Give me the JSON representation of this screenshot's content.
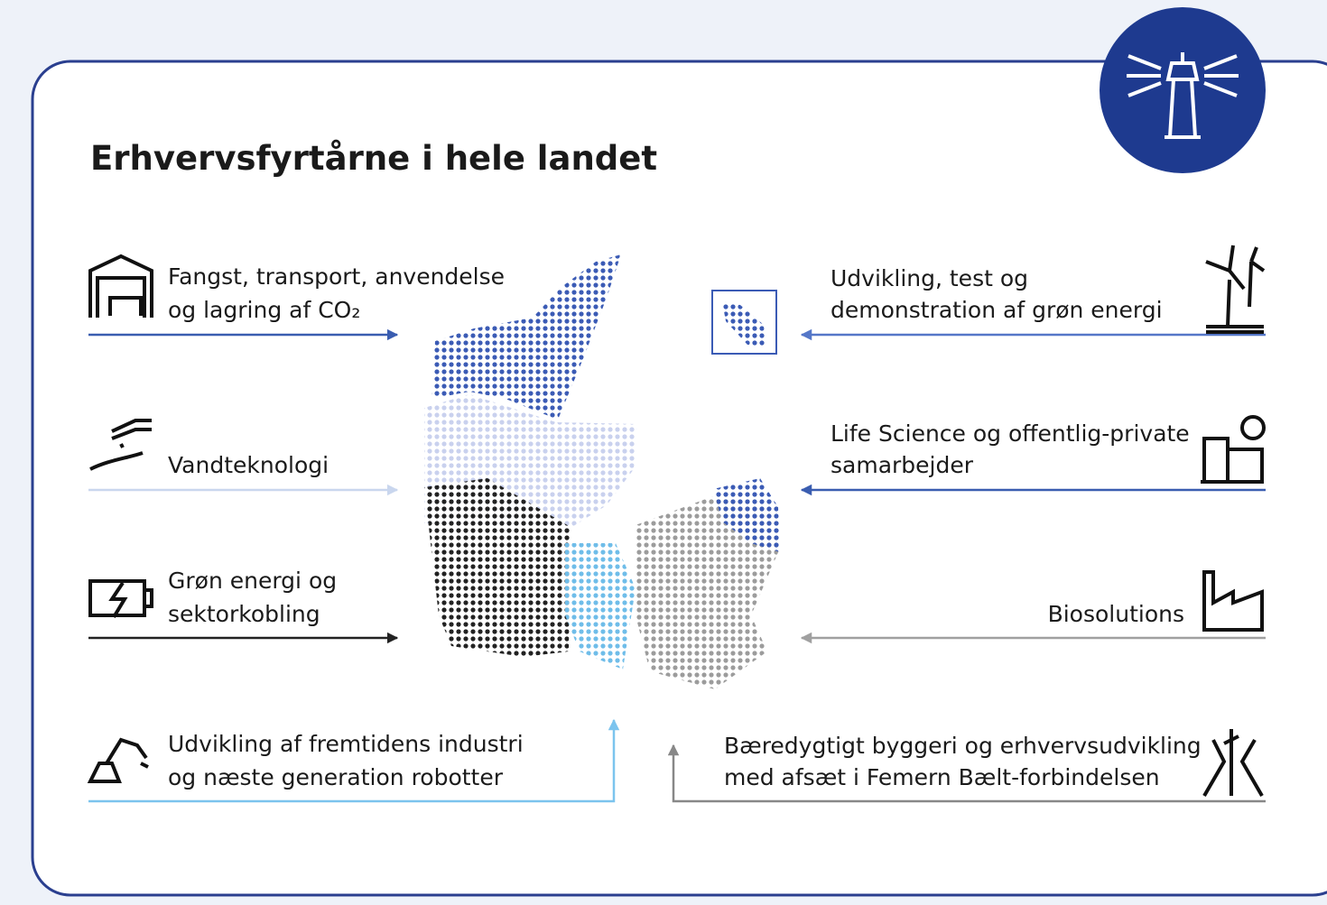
{
  "title": "Erhvervsfyrtårne i hele landet",
  "left_items": [
    {
      "lines": [
        "Fangst, transport, anvendelse",
        "og lagring af CO₂"
      ]
    },
    {
      "lines": [
        "Vandteknologi"
      ]
    },
    {
      "lines": [
        "Grøn energi og",
        "sektorkobling"
      ]
    },
    {
      "lines": [
        "Udvikling af fremtidens industri",
        "og næste generation robotter"
      ]
    }
  ],
  "right_items": [
    {
      "lines": [
        "Udvikling, test og",
        "demonstration af grøn energi"
      ]
    },
    {
      "lines": [
        "Life Science og offentlig-private",
        "samarbejder"
      ]
    },
    {
      "lines": [
        "Biosolutions"
      ]
    },
    {
      "lines": [
        "Bæredygtigt byggeri og erhvervsudvikling",
        "med afsæt i Femern Bælt-forbindelsen"
      ]
    }
  ]
}
